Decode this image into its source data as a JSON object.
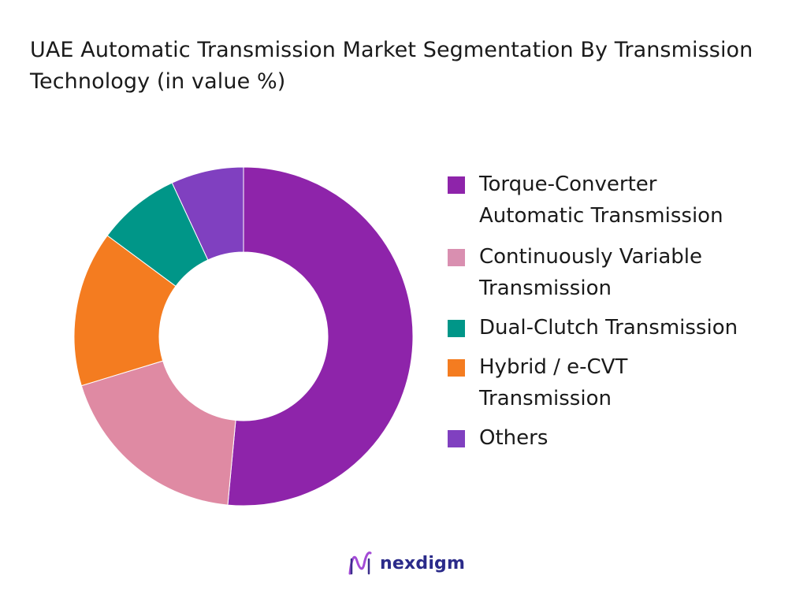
{
  "title": "UAE Automatic Transmission Market Segmentation By Transmission Technology (in value %)",
  "legend_lines": [
    [
      "Torque-Converter",
      "Automatic Transmission"
    ],
    [
      "Continuously Variable",
      "Transmission"
    ],
    [
      "Dual-Clutch Transmission"
    ],
    [
      "Hybrid / e-CVT",
      "Transmission"
    ],
    [
      "Others"
    ]
  ],
  "brand": {
    "name": "nexdigm"
  },
  "chart_data": {
    "type": "pie",
    "title": "UAE Automatic Transmission Market Segmentation By Transmission Technology (in value %)",
    "categories": [
      "Torque-Converter Automatic Transmission",
      "Continuously Variable Transmission",
      "Dual-Clutch Transmission",
      "Hybrid / e-CVT Transmission",
      "Others"
    ],
    "values": [
      52,
      19,
      15,
      8,
      7
    ],
    "colors": [
      "#8e24aa",
      "#df8aa3",
      "#f47c20",
      "#009688",
      "#8040c0"
    ],
    "legend_colors": [
      "#8e24aa",
      "#d98fb0",
      "#009688",
      "#f47c20",
      "#8040c0"
    ],
    "donut": true,
    "legend_position": "right"
  }
}
